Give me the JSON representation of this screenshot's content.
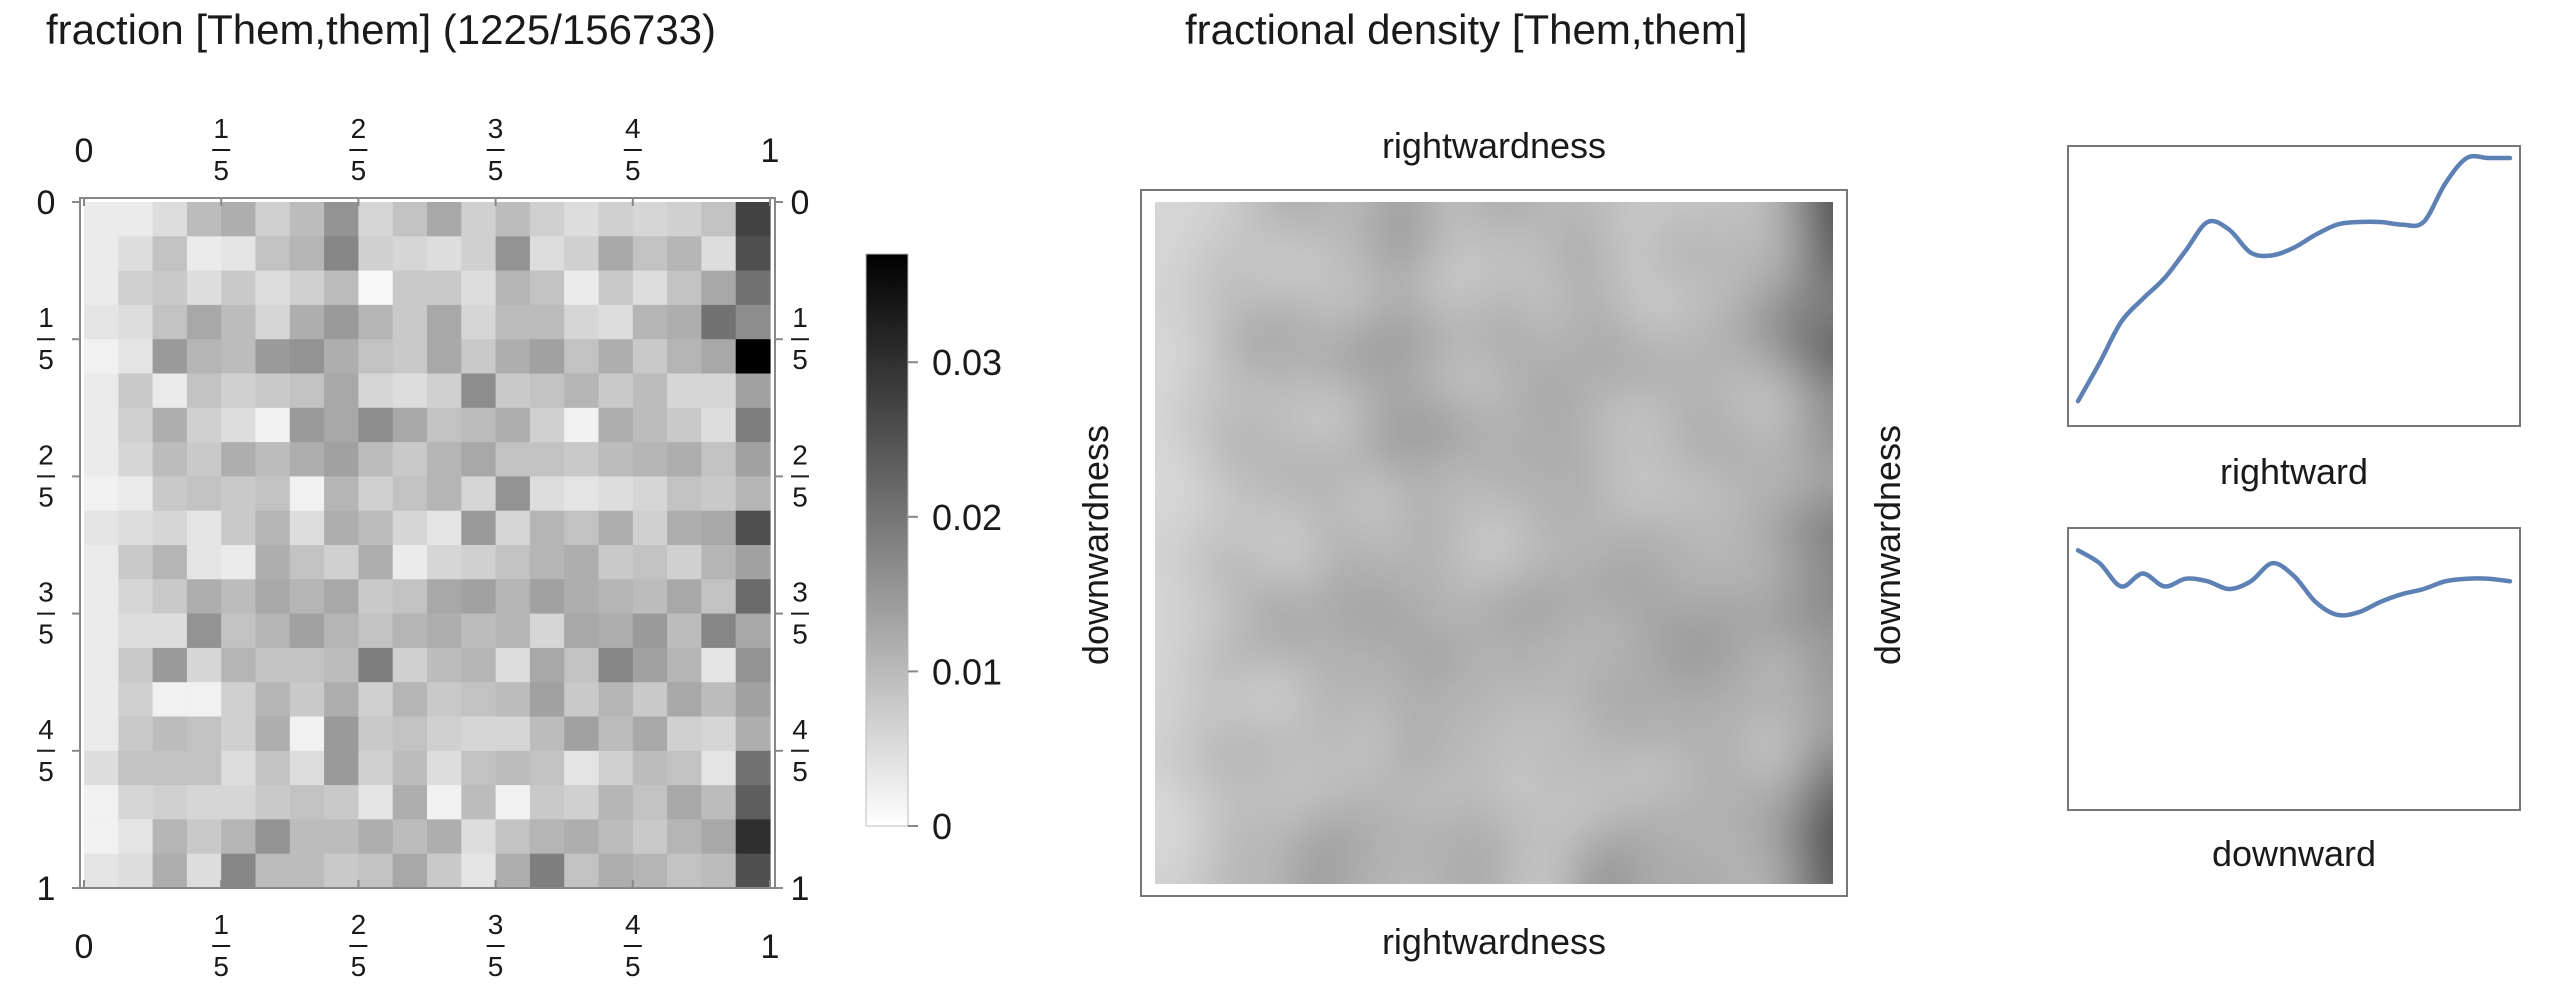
{
  "heatmap_title": "fraction [Them,them]  (1225/156733)",
  "density_title": "fractional density [Them,them]",
  "chart_data": [
    {
      "type": "heatmap",
      "title": "fraction [Them,them]  (1225/156733)",
      "rows": 20,
      "cols": 20,
      "values": [
        [
          0.002,
          0.002,
          0.004,
          0.009,
          0.011,
          0.006,
          0.009,
          0.015,
          0.005,
          0.008,
          0.012,
          0.006,
          0.009,
          0.006,
          0.004,
          0.006,
          0.005,
          0.006,
          0.008,
          0.027
        ],
        [
          0.002,
          0.004,
          0.008,
          0.002,
          0.003,
          0.008,
          0.01,
          0.017,
          0.006,
          0.005,
          0.004,
          0.006,
          0.015,
          0.004,
          0.006,
          0.012,
          0.008,
          0.01,
          0.004,
          0.025
        ],
        [
          0.002,
          0.006,
          0.007,
          0.004,
          0.007,
          0.004,
          0.006,
          0.009,
          0.0,
          0.007,
          0.007,
          0.004,
          0.01,
          0.008,
          0.002,
          0.007,
          0.004,
          0.008,
          0.012,
          0.02
        ],
        [
          0.003,
          0.004,
          0.008,
          0.012,
          0.009,
          0.005,
          0.011,
          0.014,
          0.01,
          0.007,
          0.012,
          0.005,
          0.009,
          0.009,
          0.005,
          0.004,
          0.01,
          0.011,
          0.02,
          0.016
        ],
        [
          0.001,
          0.003,
          0.014,
          0.01,
          0.009,
          0.014,
          0.015,
          0.011,
          0.008,
          0.007,
          0.012,
          0.007,
          0.011,
          0.013,
          0.008,
          0.011,
          0.007,
          0.01,
          0.012,
          0.037
        ],
        [
          0.002,
          0.007,
          0.002,
          0.008,
          0.006,
          0.007,
          0.008,
          0.012,
          0.005,
          0.004,
          0.006,
          0.016,
          0.007,
          0.008,
          0.01,
          0.007,
          0.009,
          0.005,
          0.005,
          0.013
        ],
        [
          0.002,
          0.006,
          0.011,
          0.006,
          0.004,
          0.001,
          0.014,
          0.012,
          0.016,
          0.012,
          0.008,
          0.009,
          0.011,
          0.006,
          0.001,
          0.011,
          0.009,
          0.007,
          0.004,
          0.018
        ],
        [
          0.002,
          0.005,
          0.009,
          0.007,
          0.011,
          0.009,
          0.011,
          0.013,
          0.009,
          0.007,
          0.01,
          0.012,
          0.008,
          0.008,
          0.007,
          0.009,
          0.01,
          0.011,
          0.008,
          0.013
        ],
        [
          0.001,
          0.002,
          0.007,
          0.008,
          0.007,
          0.008,
          0.001,
          0.01,
          0.006,
          0.008,
          0.01,
          0.005,
          0.015,
          0.004,
          0.003,
          0.004,
          0.005,
          0.008,
          0.007,
          0.01
        ],
        [
          0.003,
          0.004,
          0.005,
          0.003,
          0.007,
          0.01,
          0.004,
          0.011,
          0.009,
          0.005,
          0.003,
          0.014,
          0.005,
          0.01,
          0.008,
          0.011,
          0.006,
          0.011,
          0.012,
          0.025
        ],
        [
          0.002,
          0.007,
          0.01,
          0.003,
          0.002,
          0.011,
          0.008,
          0.006,
          0.011,
          0.002,
          0.005,
          0.006,
          0.008,
          0.01,
          0.011,
          0.007,
          0.008,
          0.006,
          0.01,
          0.013
        ],
        [
          0.002,
          0.005,
          0.007,
          0.011,
          0.009,
          0.012,
          0.01,
          0.012,
          0.007,
          0.008,
          0.012,
          0.013,
          0.01,
          0.013,
          0.011,
          0.01,
          0.009,
          0.012,
          0.008,
          0.021
        ],
        [
          0.002,
          0.004,
          0.004,
          0.015,
          0.008,
          0.01,
          0.013,
          0.01,
          0.008,
          0.01,
          0.011,
          0.009,
          0.01,
          0.005,
          0.012,
          0.011,
          0.014,
          0.009,
          0.017,
          0.012
        ],
        [
          0.002,
          0.007,
          0.014,
          0.005,
          0.01,
          0.008,
          0.008,
          0.009,
          0.018,
          0.006,
          0.009,
          0.01,
          0.004,
          0.012,
          0.008,
          0.017,
          0.013,
          0.01,
          0.003,
          0.015
        ],
        [
          0.002,
          0.006,
          0.001,
          0.001,
          0.006,
          0.01,
          0.007,
          0.011,
          0.006,
          0.01,
          0.007,
          0.008,
          0.009,
          0.013,
          0.007,
          0.01,
          0.007,
          0.012,
          0.009,
          0.013
        ],
        [
          0.002,
          0.007,
          0.009,
          0.008,
          0.006,
          0.011,
          0.001,
          0.014,
          0.007,
          0.008,
          0.006,
          0.005,
          0.005,
          0.009,
          0.013,
          0.009,
          0.012,
          0.006,
          0.005,
          0.011
        ],
        [
          0.004,
          0.008,
          0.008,
          0.008,
          0.004,
          0.008,
          0.004,
          0.014,
          0.006,
          0.009,
          0.004,
          0.008,
          0.009,
          0.008,
          0.003,
          0.006,
          0.009,
          0.008,
          0.003,
          0.02
        ],
        [
          0.001,
          0.005,
          0.006,
          0.005,
          0.005,
          0.007,
          0.008,
          0.007,
          0.003,
          0.011,
          0.001,
          0.009,
          0.001,
          0.007,
          0.006,
          0.01,
          0.008,
          0.012,
          0.009,
          0.023
        ],
        [
          0.001,
          0.003,
          0.01,
          0.007,
          0.01,
          0.015,
          0.009,
          0.009,
          0.011,
          0.009,
          0.011,
          0.004,
          0.008,
          0.01,
          0.011,
          0.009,
          0.007,
          0.01,
          0.012,
          0.03
        ],
        [
          0.003,
          0.004,
          0.011,
          0.004,
          0.017,
          0.009,
          0.009,
          0.007,
          0.008,
          0.012,
          0.007,
          0.003,
          0.011,
          0.018,
          0.008,
          0.011,
          0.01,
          0.008,
          0.009,
          0.025
        ]
      ],
      "x_ticks": [
        "0",
        "1/5",
        "2/5",
        "3/5",
        "4/5",
        "1"
      ],
      "y_ticks": [
        "0",
        "1/5",
        "2/5",
        "3/5",
        "4/5",
        "1"
      ],
      "legend": {
        "ticks": [
          "0",
          "0.01",
          "0.02",
          "0.03"
        ],
        "values": [
          0,
          0.01,
          0.02,
          0.03
        ],
        "range": [
          0,
          0.037
        ],
        "placement": "right"
      }
    },
    {
      "type": "heatmap",
      "title": "fractional density [Them,them]",
      "xlabel": "rightwardness",
      "ylabel": "downwardness",
      "description": "smoothed density version of the 20x20 grid; frame only, no ticks"
    },
    {
      "type": "line",
      "xlabel": "rightward",
      "x": [
        0,
        0.05,
        0.1,
        0.15,
        0.2,
        0.25,
        0.3,
        0.35,
        0.4,
        0.45,
        0.5,
        0.55,
        0.6,
        0.65,
        0.7,
        0.75,
        0.8,
        0.85,
        0.9,
        0.95,
        1.0
      ],
      "y": [
        0.05,
        0.2,
        0.36,
        0.45,
        0.53,
        0.64,
        0.75,
        0.72,
        0.63,
        0.62,
        0.65,
        0.7,
        0.74,
        0.75,
        0.75,
        0.74,
        0.75,
        0.9,
        1.0,
        1.0,
        1.0
      ]
    },
    {
      "type": "line",
      "xlabel": "downward",
      "x": [
        0,
        0.05,
        0.1,
        0.15,
        0.2,
        0.25,
        0.3,
        0.35,
        0.4,
        0.45,
        0.5,
        0.55,
        0.6,
        0.65,
        0.7,
        0.75,
        0.8,
        0.85,
        0.9,
        0.95,
        1.0
      ],
      "y": [
        0.96,
        0.91,
        0.82,
        0.87,
        0.82,
        0.85,
        0.84,
        0.81,
        0.84,
        0.91,
        0.86,
        0.76,
        0.71,
        0.72,
        0.76,
        0.79,
        0.81,
        0.84,
        0.85,
        0.85,
        0.84
      ]
    }
  ]
}
